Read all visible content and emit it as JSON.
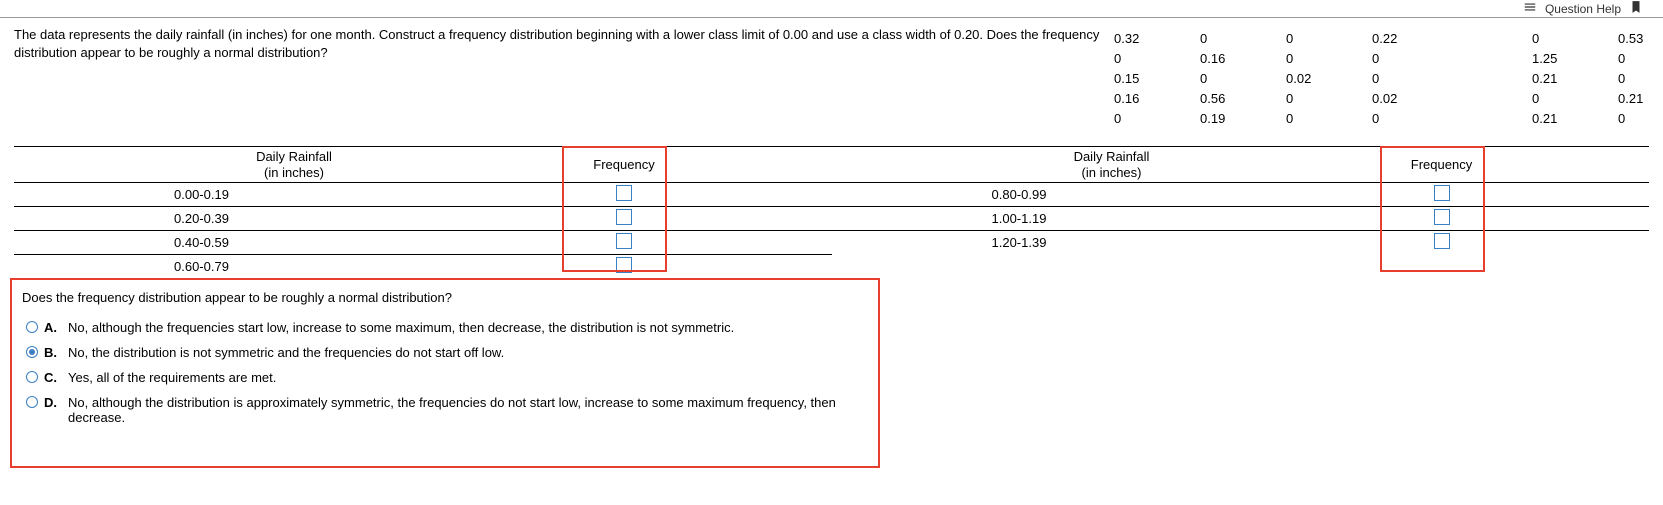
{
  "topbar": {
    "help_text": "Question Help"
  },
  "prompt": "The data represents the daily rainfall (in inches) for one month. Construct a frequency distribution beginning with a lower class limit of 0.00 and use a class width of 0.20. Does the frequency distribution appear to be roughly a normal distribution?",
  "data_rows": [
    [
      "0.32",
      "0",
      "0",
      "0.22",
      "0",
      "0.53"
    ],
    [
      "0",
      "0.16",
      "0",
      "0",
      "1.25",
      "0"
    ],
    [
      "0.15",
      "0",
      "0.02",
      "0",
      "0.21",
      "0"
    ],
    [
      "0.16",
      "0.56",
      "0",
      "0.02",
      "0",
      "0.21"
    ],
    [
      "0",
      "0.19",
      "0",
      "0",
      "0.21",
      "0"
    ]
  ],
  "table_headers": {
    "col1": "Daily Rainfall",
    "col1_sub": "(in inches)",
    "col2": "Frequency"
  },
  "table1_ranges": [
    "0.00-0.19",
    "0.20-0.39",
    "0.40-0.59",
    "0.60-0.79"
  ],
  "table2_ranges": [
    "0.80-0.99",
    "1.00-1.19",
    "1.20-1.39"
  ],
  "question": {
    "title": "Does the frequency distribution appear to be roughly a normal distribution?",
    "selected": "B",
    "options": [
      {
        "key": "A.",
        "text": "No, although the frequencies start low, increase to some maximum, then decrease, the distribution is not symmetric."
      },
      {
        "key": "B.",
        "text": "No, the distribution is not symmetric and the frequencies do not start off low."
      },
      {
        "key": "C.",
        "text": "Yes, all of the requirements are met."
      },
      {
        "key": "D.",
        "text": "No, although the distribution is approximately symmetric, the frequencies do not start low, increase to some maximum frequency, then decrease."
      }
    ]
  },
  "colors": {
    "highlight": "#e83e2e",
    "input_border": "#3b7fc4"
  }
}
